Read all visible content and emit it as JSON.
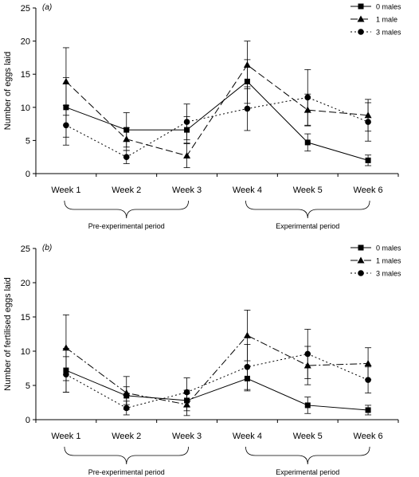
{
  "chart_data": [
    {
      "panel_label": "(a)",
      "type": "line",
      "ylabel": "Number of eggs laid",
      "ylim": [
        0,
        25
      ],
      "yticks": [
        "0",
        "5",
        "10",
        "15",
        "20",
        "25"
      ],
      "categories": [
        "Week 1",
        "Week 2",
        "Week 3",
        "Week 4",
        "Week 5",
        "Week 6"
      ],
      "periods": [
        "Pre-experimental period",
        "Experimental period"
      ],
      "legend_position": "top-right",
      "series": [
        {
          "name": "0 males",
          "marker": "square",
          "line": "solid",
          "values": [
            10.0,
            6.6,
            6.6,
            13.9,
            4.7,
            2.0
          ],
          "errors": [
            4.5,
            2.6,
            2.0,
            3.3,
            1.3,
            0.8
          ]
        },
        {
          "name": "1 male",
          "marker": "triangle",
          "line": "dashed",
          "values": [
            13.9,
            5.2,
            2.7,
            16.4,
            9.6,
            8.8
          ],
          "errors": [
            5.1,
            1.7,
            1.8,
            3.6,
            2.4,
            2.4
          ]
        },
        {
          "name": "3 males",
          "marker": "circle",
          "line": "dotted",
          "values": [
            7.3,
            2.5,
            7.8,
            9.8,
            11.5,
            7.8
          ],
          "errors": [
            3.0,
            1.0,
            2.7,
            3.3,
            4.2,
            2.9
          ]
        }
      ]
    },
    {
      "panel_label": "(b)",
      "type": "line",
      "ylabel": "Number of fertilised eggs laid",
      "ylim": [
        0,
        25
      ],
      "yticks": [
        "0",
        "5",
        "10",
        "15",
        "20",
        "25"
      ],
      "categories": [
        "Week 1",
        "Week 2",
        "Week 3",
        "Week 4",
        "Week 5",
        "Week 6"
      ],
      "periods": [
        "Pre-experimental period",
        "Experimental period"
      ],
      "legend_position": "top-right",
      "series": [
        {
          "name": "0 males",
          "marker": "square",
          "line": "solid",
          "values": [
            7.2,
            3.5,
            2.8,
            6.0,
            2.1,
            1.4
          ],
          "errors": [
            3.2,
            1.3,
            1.5,
            1.8,
            1.2,
            0.7
          ]
        },
        {
          "name": "1 males",
          "marker": "triangle",
          "line": "dashdot",
          "values": [
            10.5,
            3.9,
            2.2,
            12.3,
            7.9,
            8.2
          ],
          "errors": [
            4.8,
            2.4,
            1.6,
            3.7,
            2.8,
            2.3
          ]
        },
        {
          "name": "3 males",
          "marker": "circle",
          "line": "dotted",
          "values": [
            6.6,
            1.7,
            4.0,
            7.7,
            9.6,
            5.8
          ],
          "errors": [
            2.6,
            1.0,
            2.1,
            3.3,
            3.6,
            1.9
          ]
        }
      ]
    }
  ]
}
